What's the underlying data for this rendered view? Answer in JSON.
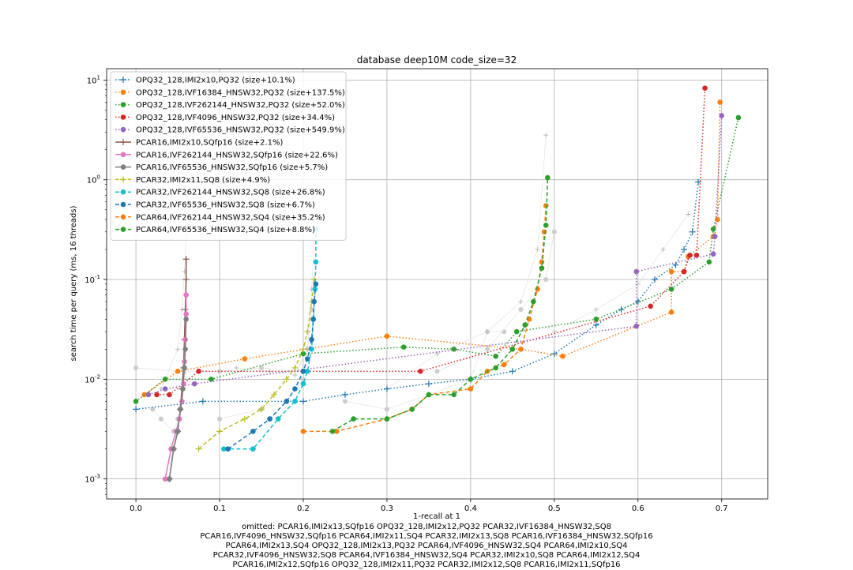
{
  "chart_data": {
    "type": "line",
    "title": "database deep10M code_size=32",
    "xlabel": "1-recall at 1",
    "ylabel": "search time per query (ms, 16 threads)",
    "xlim": [
      -0.035,
      0.755
    ],
    "ylim": [
      0.00063,
      13
    ],
    "yscale": "log",
    "grid": true,
    "legend_position": "top-left",
    "xticks": [
      "0.0",
      "0.1",
      "0.2",
      "0.3",
      "0.4",
      "0.5",
      "0.6",
      "0.7"
    ],
    "yticks": [
      "10^-3",
      "10^-2",
      "10^-1",
      "10^0",
      "10^1"
    ],
    "omitted": [
      "omitted: PCAR16,IMI2x13,SQfp16 OPQ32_128,IMI2x12,PQ32 PCAR32,IVF16384_HNSW32,SQ8",
      "PCAR16,IVF4096_HNSW32,SQfp16 PCAR64,IMI2x11,SQ4 PCAR32,IMI2x13,SQ8 PCAR16,IVF16384_HNSW32,SQfp16",
      "PCAR64,IMI2x13,SQ4 OPQ32_128,IMI2x13,PQ32 PCAR64,IVF4096_HNSW32,SQ4 PCAR64,IMI2x10,SQ4",
      "PCAR32,IVF4096_HNSW32,SQ8 PCAR64,IVF16384_HNSW32,SQ4 PCAR32,IMI2x10,SQ8 PCAR64,IMI2x12,SQ4",
      "PCAR16,IMI2x12,SQfp16 OPQ32_128,IMI2x11,PQ32 PCAR32,IMI2x12,SQ8 PCAR16,IMI2x11,SQfp16"
    ],
    "background": [
      {
        "x": [
          0.02,
          0.03,
          0.045,
          0.05,
          0.055,
          0.058
        ],
        "y": [
          0.005,
          0.004,
          0.003,
          0.004,
          0.006,
          0.012
        ]
      },
      {
        "x": [
          0.03,
          0.05,
          0.055,
          0.058,
          0.06
        ],
        "y": [
          0.008,
          0.02,
          0.05,
          0.12,
          0.28
        ]
      },
      {
        "x": [
          0.1,
          0.15,
          0.18,
          0.2,
          0.205,
          0.21
        ],
        "y": [
          0.004,
          0.005,
          0.006,
          0.01,
          0.02,
          0.05
        ]
      },
      {
        "x": [
          0.12,
          0.16,
          0.19,
          0.205,
          0.21,
          0.215
        ],
        "y": [
          0.013,
          0.012,
          0.011,
          0.02,
          0.08,
          0.5
        ]
      },
      {
        "x": [
          0.25,
          0.3,
          0.35,
          0.4,
          0.42,
          0.44
        ],
        "y": [
          0.006,
          0.005,
          0.007,
          0.01,
          0.03,
          0.03
        ]
      },
      {
        "x": [
          0.3,
          0.36,
          0.42,
          0.46,
          0.48,
          0.49
        ],
        "y": [
          0.008,
          0.018,
          0.03,
          0.06,
          0.2,
          2.8
        ]
      },
      {
        "x": [
          0.36,
          0.42,
          0.46,
          0.49,
          0.5
        ],
        "y": [
          0.012,
          0.02,
          0.05,
          0.1,
          0.3
        ]
      },
      {
        "x": [
          0.5,
          0.55,
          0.6,
          0.63,
          0.66
        ],
        "y": [
          0.03,
          0.05,
          0.09,
          0.2,
          0.45
        ]
      },
      {
        "x": [
          0.0,
          0.05,
          0.1,
          0.15,
          0.2
        ],
        "y": [
          0.013,
          0.012,
          0.012,
          0.013,
          0.012
        ]
      }
    ],
    "series": [
      {
        "name": "OPQ32_128,IMI2x10,PQ32 (size+10.1%)",
        "color": "#1f77b4",
        "style": "dotted",
        "marker": "plus",
        "x": [
          0.0,
          0.08,
          0.2,
          0.25,
          0.3,
          0.35,
          0.4,
          0.45,
          0.5,
          0.55,
          0.58,
          0.6,
          0.62,
          0.645,
          0.655,
          0.665,
          0.672
        ],
        "y": [
          0.005,
          0.006,
          0.006,
          0.007,
          0.008,
          0.009,
          0.01,
          0.012,
          0.018,
          0.035,
          0.05,
          0.06,
          0.1,
          0.14,
          0.2,
          0.3,
          0.95
        ]
      },
      {
        "name": "OPQ32_128,IVF16384_HNSW32,PQ32 (size+137.5%)",
        "color": "#ff7f0e",
        "style": "dotted",
        "marker": "circle",
        "x": [
          0.01,
          0.05,
          0.13,
          0.3,
          0.46,
          0.51,
          0.64,
          0.64,
          0.655,
          0.66,
          0.69,
          0.695,
          0.698
        ],
        "y": [
          0.007,
          0.012,
          0.016,
          0.027,
          0.02,
          0.017,
          0.047,
          0.12,
          0.12,
          0.17,
          0.27,
          0.4,
          6.0
        ]
      },
      {
        "name": "OPQ32_128,IVF262144_HNSW32,PQ32 (size+52.0%)",
        "color": "#2ca02c",
        "style": "dotted",
        "marker": "circle",
        "x": [
          0.0,
          0.035,
          0.09,
          0.2,
          0.32,
          0.38,
          0.43,
          0.455,
          0.55,
          0.64,
          0.685,
          0.69,
          0.72
        ],
        "y": [
          0.006,
          0.01,
          0.01,
          0.018,
          0.021,
          0.02,
          0.017,
          0.03,
          0.04,
          0.08,
          0.15,
          0.32,
          4.2
        ]
      },
      {
        "name": "OPQ32_128,IVF4096_HNSW32,PQ32 (size+34.4%)",
        "color": "#d62728",
        "style": "dotted",
        "marker": "circle",
        "x": [
          0.025,
          0.04,
          0.075,
          0.34,
          0.615,
          0.655,
          0.662,
          0.67,
          0.68
        ],
        "y": [
          0.007,
          0.007,
          0.012,
          0.012,
          0.054,
          0.12,
          0.175,
          0.175,
          8.3
        ]
      },
      {
        "name": "OPQ32_128,IVF65536_HNSW32,PQ32 (size+549.9%)",
        "color": "#9467bd",
        "style": "dotted",
        "marker": "circle",
        "x": [
          0.015,
          0.035,
          0.07,
          0.598,
          0.598,
          0.69,
          0.692,
          0.7
        ],
        "y": [
          0.007,
          0.008,
          0.009,
          0.034,
          0.12,
          0.18,
          0.27,
          4.4
        ]
      },
      {
        "name": "PCAR16,IMI2x10,SQfp16 (size+2.1%)",
        "color": "#8c564b",
        "style": "solid",
        "marker": "plus",
        "x": [
          0.04,
          0.045,
          0.05,
          0.053,
          0.055,
          0.057,
          0.058,
          0.059,
          0.06,
          0.06
        ],
        "y": [
          0.001,
          0.002,
          0.003,
          0.005,
          0.008,
          0.013,
          0.025,
          0.05,
          0.1,
          0.16
        ]
      },
      {
        "name": "PCAR16,IVF262144_HNSW32,SQfp16 (size+22.6%)",
        "color": "#e377c2",
        "style": "solid",
        "marker": "circle",
        "x": [
          0.035,
          0.042,
          0.048,
          0.052,
          0.055,
          0.057,
          0.058,
          0.059,
          0.06,
          0.06
        ],
        "y": [
          0.001,
          0.002,
          0.003,
          0.004,
          0.006,
          0.009,
          0.015,
          0.025,
          0.045,
          0.07
        ]
      },
      {
        "name": "PCAR16,IVF65536_HNSW32,SQfp16 (size+5.7%)",
        "color": "#7f7f7f",
        "style": "solid",
        "marker": "circle",
        "x": [
          0.04,
          0.045,
          0.05,
          0.053,
          0.056,
          0.058,
          0.059,
          0.06
        ],
        "y": [
          0.001,
          0.002,
          0.003,
          0.005,
          0.008,
          0.013,
          0.02,
          0.04
        ]
      },
      {
        "name": "PCAR32,IMI2x11,SQ8 (size+4.9%)",
        "color": "#bcbd22",
        "style": "dashed",
        "marker": "plus",
        "x": [
          0.075,
          0.1,
          0.13,
          0.15,
          0.165,
          0.18,
          0.19,
          0.2,
          0.205,
          0.21,
          0.213
        ],
        "y": [
          0.002,
          0.003,
          0.004,
          0.005,
          0.007,
          0.01,
          0.013,
          0.02,
          0.03,
          0.06,
          0.1
        ]
      },
      {
        "name": "PCAR32,IVF262144_HNSW32,SQ8 (size+26.8%)",
        "color": "#17becf",
        "style": "dashed",
        "marker": "circle",
        "x": [
          0.105,
          0.14,
          0.17,
          0.19,
          0.2,
          0.205,
          0.21,
          0.212,
          0.214,
          0.215,
          0.215
        ],
        "y": [
          0.002,
          0.002,
          0.004,
          0.006,
          0.009,
          0.012,
          0.02,
          0.04,
          0.08,
          0.15,
          0.32
        ]
      },
      {
        "name": "PCAR32,IVF65536_HNSW32,SQ8 (size+6.7%)",
        "color": "#1f77b4",
        "style": "dashed",
        "marker": "circle",
        "x": [
          0.11,
          0.14,
          0.16,
          0.18,
          0.19,
          0.2,
          0.205,
          0.21,
          0.212,
          0.213,
          0.215
        ],
        "y": [
          0.002,
          0.003,
          0.004,
          0.006,
          0.008,
          0.012,
          0.016,
          0.025,
          0.04,
          0.06,
          0.09
        ]
      },
      {
        "name": "PCAR64,IVF262144_HNSW32,SQ4 (size+35.2%)",
        "color": "#ff7f0e",
        "style": "dashed",
        "marker": "circle",
        "x": [
          0.2,
          0.24,
          0.3,
          0.33,
          0.35,
          0.4,
          0.42,
          0.44,
          0.46,
          0.47,
          0.48,
          0.485,
          0.488,
          0.49
        ],
        "y": [
          0.003,
          0.003,
          0.004,
          0.005,
          0.007,
          0.008,
          0.012,
          0.014,
          0.02,
          0.04,
          0.08,
          0.15,
          0.3,
          0.55
        ]
      },
      {
        "name": "PCAR64,IVF65536_HNSW32,SQ4 (size+8.8%)",
        "color": "#2ca02c",
        "style": "dashed",
        "marker": "circle",
        "x": [
          0.235,
          0.26,
          0.3,
          0.33,
          0.35,
          0.38,
          0.4,
          0.43,
          0.45,
          0.465,
          0.475,
          0.485,
          0.49,
          0.492
        ],
        "y": [
          0.003,
          0.004,
          0.004,
          0.005,
          0.007,
          0.007,
          0.01,
          0.013,
          0.02,
          0.035,
          0.06,
          0.13,
          0.35,
          1.05
        ]
      }
    ]
  }
}
